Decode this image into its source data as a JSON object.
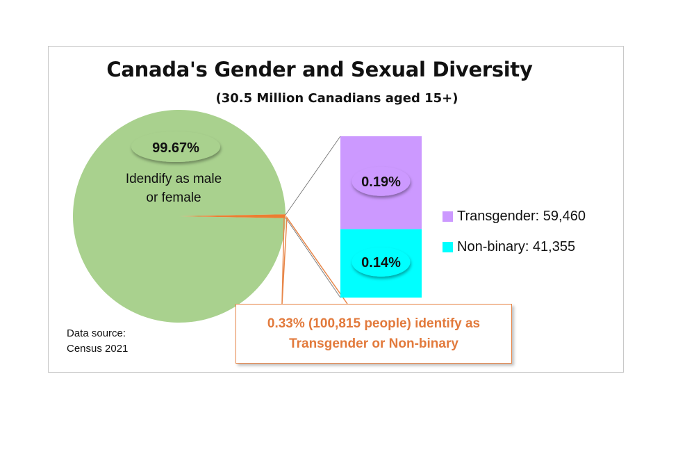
{
  "chart_data": [
    {
      "type": "pie",
      "title": "Canada's Gender and Sexual Diversity",
      "subtitle": "(30.5 Million Canadians aged 15+)",
      "slices": [
        {
          "name": "Idendify as male or female",
          "value": 99.67,
          "label": "99.67%",
          "color": "#a9d18e"
        },
        {
          "name": "Transgender or Non-binary",
          "value": 0.33,
          "color": "#ed7d31"
        }
      ]
    },
    {
      "type": "bar",
      "stacked": true,
      "series": [
        {
          "name": "Transgender",
          "value": 0.19,
          "label": "0.19%",
          "count": 59460,
          "color": "#cc99ff"
        },
        {
          "name": "Non-binary",
          "value": 0.14,
          "label": "0.14%",
          "count": 41355,
          "color": "#00ffff"
        }
      ]
    }
  ],
  "pie_label": {
    "line1": "Idendify as male",
    "line2": "or female"
  },
  "legend": [
    {
      "text": "Transgender: 59,460",
      "color": "#cc99ff"
    },
    {
      "text": "Non-binary: 41,355",
      "color": "#00ffff"
    }
  ],
  "callout": {
    "line1": "0.33% (100,815 people) identify as",
    "line2": "Transgender or Non-binary"
  },
  "source": {
    "line1": "Data source:",
    "line2": "Census 2021"
  }
}
